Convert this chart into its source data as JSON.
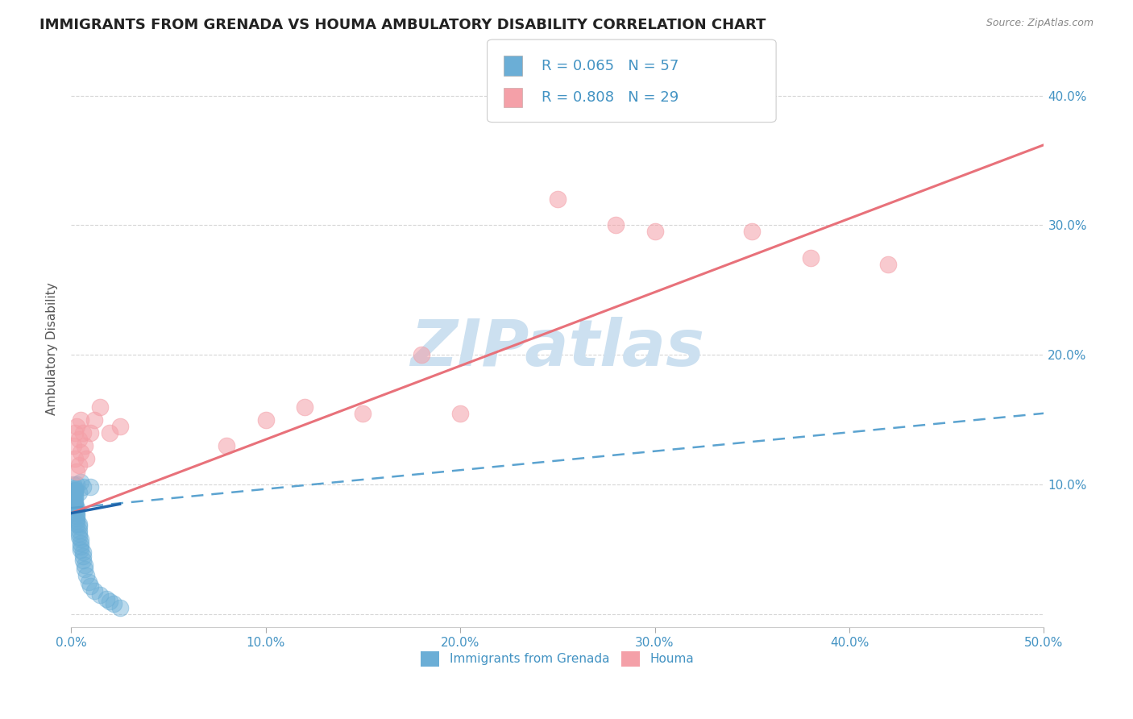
{
  "title": "IMMIGRANTS FROM GRENADA VS HOUMA AMBULATORY DISABILITY CORRELATION CHART",
  "source_text": "Source: ZipAtlas.com",
  "ylabel": "Ambulatory Disability",
  "legend_labels": [
    "Immigrants from Grenada",
    "Houma"
  ],
  "r_values": [
    0.065,
    0.808
  ],
  "n_values": [
    57,
    29
  ],
  "xlim": [
    0.0,
    0.5
  ],
  "ylim": [
    -0.01,
    0.42
  ],
  "xticks": [
    0.0,
    0.1,
    0.2,
    0.3,
    0.4,
    0.5
  ],
  "xticklabels": [
    "0.0%",
    "10.0%",
    "20.0%",
    "30.0%",
    "40.0%",
    "50.0%"
  ],
  "yticks_right": [
    0.0,
    0.1,
    0.2,
    0.3,
    0.4
  ],
  "yticklabels_right": [
    "",
    "10.0%",
    "20.0%",
    "30.0%",
    "40.0%"
  ],
  "scatter_blue_x": [
    0.001,
    0.001,
    0.001,
    0.001,
    0.001,
    0.001,
    0.001,
    0.001,
    0.001,
    0.001,
    0.002,
    0.002,
    0.002,
    0.002,
    0.002,
    0.002,
    0.002,
    0.002,
    0.002,
    0.003,
    0.003,
    0.003,
    0.003,
    0.003,
    0.003,
    0.003,
    0.004,
    0.004,
    0.004,
    0.004,
    0.004,
    0.005,
    0.005,
    0.005,
    0.005,
    0.006,
    0.006,
    0.006,
    0.007,
    0.007,
    0.008,
    0.009,
    0.01,
    0.012,
    0.015,
    0.018,
    0.02,
    0.022,
    0.025,
    0.01,
    0.005,
    0.003,
    0.002,
    0.004,
    0.006,
    0.001,
    0.002
  ],
  "scatter_blue_y": [
    0.09,
    0.085,
    0.092,
    0.088,
    0.086,
    0.093,
    0.091,
    0.087,
    0.094,
    0.089,
    0.095,
    0.083,
    0.096,
    0.088,
    0.092,
    0.086,
    0.09,
    0.084,
    0.097,
    0.08,
    0.076,
    0.072,
    0.078,
    0.082,
    0.07,
    0.074,
    0.065,
    0.068,
    0.062,
    0.07,
    0.06,
    0.055,
    0.058,
    0.052,
    0.05,
    0.045,
    0.042,
    0.048,
    0.038,
    0.035,
    0.03,
    0.025,
    0.022,
    0.018,
    0.015,
    0.012,
    0.01,
    0.008,
    0.005,
    0.098,
    0.102,
    0.1,
    0.096,
    0.094,
    0.098,
    0.1,
    0.095
  ],
  "scatter_pink_x": [
    0.001,
    0.002,
    0.002,
    0.003,
    0.003,
    0.004,
    0.004,
    0.005,
    0.005,
    0.006,
    0.007,
    0.008,
    0.01,
    0.012,
    0.015,
    0.02,
    0.025,
    0.08,
    0.1,
    0.12,
    0.15,
    0.18,
    0.2,
    0.28,
    0.3,
    0.35,
    0.38,
    0.42,
    0.25
  ],
  "scatter_pink_y": [
    0.13,
    0.14,
    0.12,
    0.145,
    0.11,
    0.135,
    0.115,
    0.15,
    0.125,
    0.14,
    0.13,
    0.12,
    0.14,
    0.15,
    0.16,
    0.14,
    0.145,
    0.13,
    0.15,
    0.16,
    0.155,
    0.2,
    0.155,
    0.3,
    0.295,
    0.295,
    0.275,
    0.27,
    0.32
  ],
  "blue_line_x": [
    0.0,
    0.5
  ],
  "blue_line_y": [
    0.082,
    0.155
  ],
  "red_line_x": [
    0.0,
    0.5
  ],
  "red_line_y": [
    0.078,
    0.362
  ],
  "blue_solid_line_x": [
    0.0,
    0.025
  ],
  "blue_solid_line_y": [
    0.078,
    0.085
  ],
  "blue_color": "#6baed6",
  "pink_color": "#f4a0a8",
  "blue_line_color": "#5ba3d0",
  "red_line_color": "#e8717a",
  "blue_solid_color": "#2166ac",
  "legend_r_n_color": "#4393c3",
  "grid_color": "#cccccc",
  "watermark_color": "#cce0f0",
  "background_color": "#ffffff",
  "title_fontsize": 13,
  "axis_label_fontsize": 11,
  "tick_fontsize": 11
}
